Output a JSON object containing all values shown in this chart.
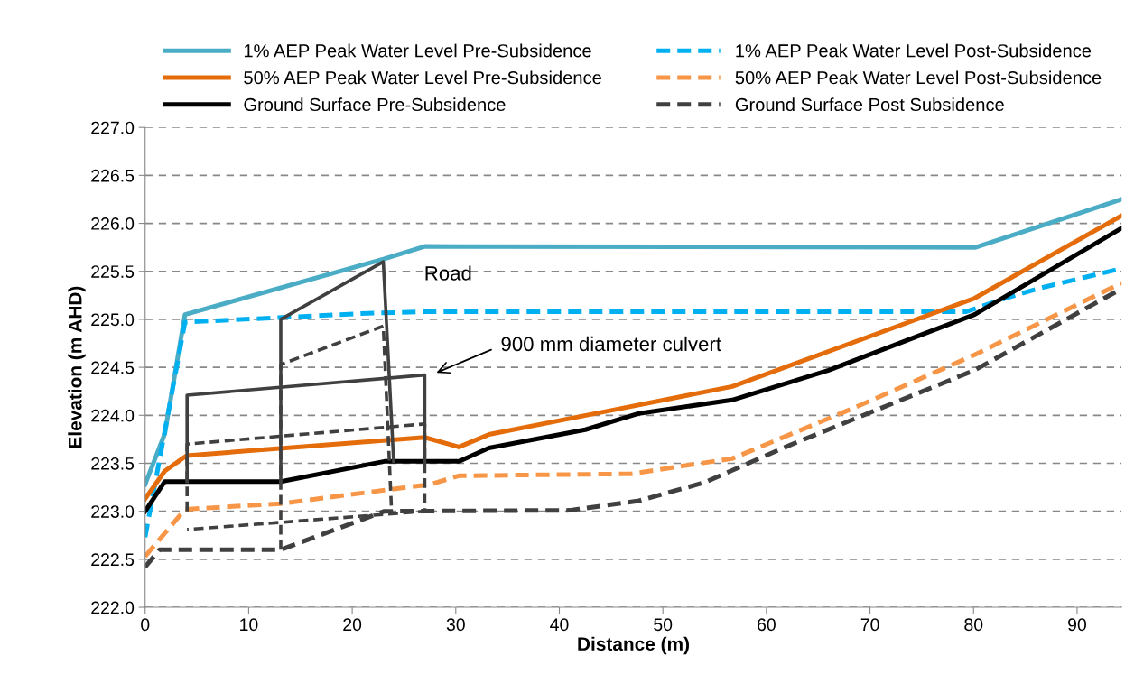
{
  "chart_data": {
    "type": "line",
    "xlabel": "Distance (m)",
    "ylabel": "Elevation (m AHD)",
    "xlim": [
      0,
      94.3
    ],
    "xticks": [
      0,
      10,
      20,
      30,
      40,
      50,
      60,
      70,
      80,
      90
    ],
    "ylim": [
      222.0,
      227.0
    ],
    "yticks": [
      {
        "value": 222.0,
        "label": "222.0"
      },
      {
        "value": 222.5,
        "label": "222.5"
      },
      {
        "value": 223.0,
        "label": "223.0"
      },
      {
        "value": 223.5,
        "label": "223.5"
      },
      {
        "value": 224.0,
        "label": "224.0"
      },
      {
        "value": 224.5,
        "label": "224.5"
      },
      {
        "value": 225.0,
        "label": "225.0"
      },
      {
        "value": 225.5,
        "label": "225.5"
      },
      {
        "value": 226.0,
        "label": "226.0"
      },
      {
        "value": 226.5,
        "label": "226.5"
      },
      {
        "value": 227.0,
        "label": "227.0"
      }
    ],
    "grid": "y",
    "legend": "top",
    "marker": "none",
    "series": [
      {
        "name": "1% AEP Peak Water Level Pre-Subsidence",
        "color": "#4bacc6",
        "line_style": "solid",
        "x": [
          0,
          1.9,
          3.85,
          23.1,
          27.0,
          80.2,
          94.3
        ],
        "values": [
          223.28,
          223.81,
          225.05,
          225.63,
          225.76,
          225.75,
          226.25
        ]
      },
      {
        "name": "1% AEP Peak Water Level Post-Subsidence",
        "color": "#00b0f0",
        "line_style": "dashed",
        "x": [
          0,
          3.85,
          20.8,
          27.0,
          79.3,
          82.8,
          86.2,
          94.3
        ],
        "values": [
          222.73,
          224.97,
          225.06,
          225.08,
          225.08,
          225.21,
          225.32,
          225.53
        ]
      },
      {
        "name": "50% AEP Peak Water Level Pre-Subsidence",
        "color": "#e46c0a",
        "line_style": "solid",
        "x": [
          0,
          1.9,
          4.0,
          27.0,
          30.3,
          33.2,
          44.0,
          56.7,
          80.1,
          94.3
        ],
        "values": [
          223.13,
          223.42,
          223.58,
          223.77,
          223.67,
          223.8,
          224.03,
          224.3,
          225.22,
          226.08
        ]
      },
      {
        "name": "50% AEP Peak Water Level Post-Subsidence",
        "color": "#f79646",
        "line_style": "dashed",
        "x": [
          0,
          3.85,
          13.1,
          23.1,
          27.5,
          30.3,
          46.9,
          56.7,
          68.3,
          80.1,
          94.3
        ],
        "values": [
          222.53,
          223.02,
          223.08,
          223.22,
          223.28,
          223.37,
          223.39,
          223.55,
          224.07,
          224.63,
          225.38
        ]
      },
      {
        "name": "Ground Surface Pre-Subsidence",
        "color": "#000000",
        "line_style": "solid",
        "x": [
          0,
          1.9,
          13.1,
          23.1,
          30.3,
          33.2,
          42.5,
          47.7,
          56.7,
          66.0,
          80.1,
          94.3
        ],
        "values": [
          223.0,
          223.31,
          223.31,
          223.52,
          223.52,
          223.66,
          223.85,
          224.02,
          224.16,
          224.47,
          225.05,
          225.95
        ]
      },
      {
        "name": "Ground Surface Post Subsidence",
        "color": "#404040",
        "line_style": "dashed",
        "x": [
          0,
          1.4,
          13.1,
          23.1,
          41.0,
          47.7,
          54.0,
          62.5,
          80.1,
          94.3
        ],
        "values": [
          222.42,
          222.6,
          222.6,
          223.0,
          223.01,
          223.11,
          223.3,
          223.7,
          224.47,
          225.32
        ]
      },
      {
        "color": "#404040",
        "line_style": "solid",
        "x": [
          13.1,
          13.1,
          23.0,
          24.0
        ],
        "values": [
          223.31,
          225.0,
          225.6,
          223.52
        ]
      },
      {
        "color": "#404040",
        "line_style": "dashed",
        "x": [
          13.1,
          13.1,
          23.0,
          23.8
        ],
        "values": [
          222.6,
          224.53,
          224.93,
          223.0
        ]
      },
      {
        "color": "#404040",
        "line_style": "solid",
        "x": [
          4.05,
          4.05,
          27.0,
          27.0
        ],
        "values": [
          223.31,
          224.21,
          224.42,
          223.52
        ]
      },
      {
        "color": "#404040",
        "line_style": "dashed",
        "x": [
          4.05,
          4.05,
          27.0,
          27.0,
          4.05
        ],
        "values": [
          223.0,
          223.7,
          223.91,
          223.0,
          222.81
        ]
      }
    ],
    "annotations": [
      "Road",
      "900 mm diameter culvert"
    ]
  }
}
